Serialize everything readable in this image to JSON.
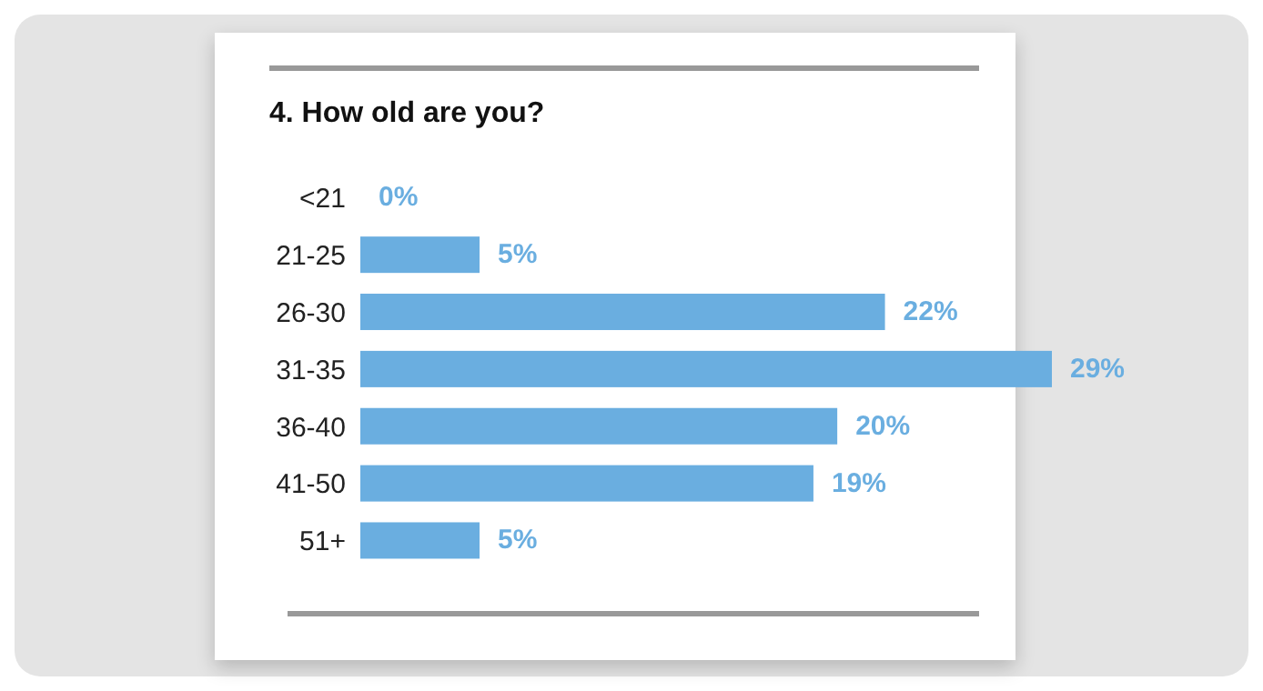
{
  "chart_data": {
    "type": "bar",
    "orientation": "horizontal",
    "title": "4. How old are you?",
    "categories": [
      "<21",
      "21-25",
      "26-30",
      "31-35",
      "36-40",
      "41-50",
      "51+"
    ],
    "values": [
      0,
      5,
      22,
      29,
      20,
      19,
      5
    ],
    "value_labels": [
      "0%",
      "5%",
      "22%",
      "29%",
      "20%",
      "19%",
      "5%"
    ],
    "color": "#6aaee0"
  }
}
